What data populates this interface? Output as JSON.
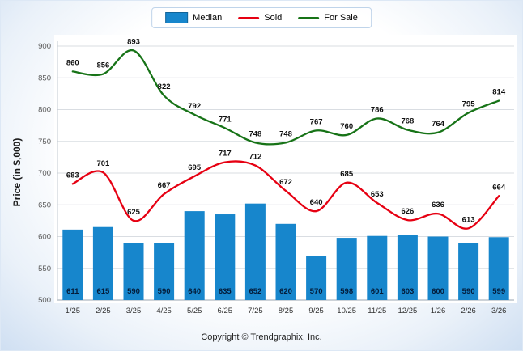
{
  "page": {
    "copyright": "Copyright © Trendgraphix, Inc."
  },
  "chart_data": {
    "type": "combo",
    "categories": [
      "1/25",
      "2/25",
      "3/25",
      "4/25",
      "5/25",
      "6/25",
      "7/25",
      "8/25",
      "9/25",
      "10/25",
      "11/25",
      "12/25",
      "1/26",
      "2/26",
      "3/26"
    ],
    "series": [
      {
        "name": "Median",
        "type": "bar",
        "color": "#1786cc",
        "values": [
          611,
          615,
          590,
          590,
          640,
          635,
          652,
          620,
          570,
          598,
          601,
          603,
          600,
          590,
          599
        ]
      },
      {
        "name": "Sold",
        "type": "line",
        "color": "#e60012",
        "values": [
          683,
          701,
          625,
          667,
          695,
          717,
          712,
          672,
          640,
          685,
          653,
          626,
          636,
          613,
          664
        ]
      },
      {
        "name": "For Sale",
        "type": "line",
        "color": "#177317",
        "values": [
          860,
          856,
          893,
          822,
          792,
          771,
          748,
          748,
          767,
          760,
          786,
          768,
          764,
          795,
          814
        ]
      }
    ],
    "title": "",
    "xlabel": "",
    "ylabel": "Price (in $,000)",
    "ylim": [
      500,
      900
    ],
    "ytick_step": 50,
    "grid": true,
    "legend_position": "top"
  }
}
